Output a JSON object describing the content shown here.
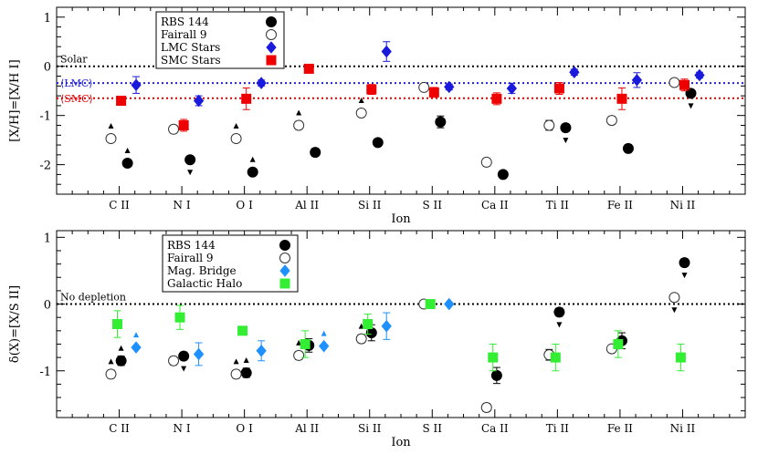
{
  "chart_data": [
    {
      "type": "scatter",
      "categories": [
        "C II",
        "N I",
        "O I",
        "Al II",
        "Si II",
        "S II",
        "Ca II",
        "Ti II",
        "Fe II",
        "Ni II"
      ],
      "xlabel": "Ion",
      "ylabel": "[X/H]=[X/H I]",
      "ylim": [
        -2.6,
        1.2
      ],
      "yticks": [
        -2,
        -1,
        0,
        1
      ],
      "reference_lines": [
        {
          "label": "Solar",
          "y": 0,
          "color": "#000000"
        },
        {
          "label": "⟨LMC⟩",
          "y": -0.34,
          "color": "#2222dd"
        },
        {
          "label": "⟨SMC⟩",
          "y": -0.65,
          "color": "#dd0000"
        }
      ],
      "legend": {
        "position": "top-left",
        "entries": [
          {
            "label": "RBS 144",
            "marker": "filled-circle"
          },
          {
            "label": "Fairall 9",
            "marker": "open-circle"
          },
          {
            "label": "LMC Stars",
            "marker": "blue-diamond"
          },
          {
            "label": "SMC Stars",
            "marker": "red-square"
          }
        ]
      },
      "series": [
        {
          "name": "RBS 144",
          "marker": "filled-circle",
          "color": "#000000",
          "offset": 0.22,
          "points": [
            {
              "c": 0,
              "y": -1.97,
              "err": 0.06,
              "limit": "lower"
            },
            {
              "c": 1,
              "y": -1.9,
              "err": 0.06,
              "limit": "upper"
            },
            {
              "c": 2,
              "y": -2.15,
              "err": 0.06,
              "limit": "lower"
            },
            {
              "c": 3,
              "y": -1.75,
              "err": 0.08,
              "limit": null
            },
            {
              "c": 4,
              "y": -1.55,
              "err": 0.06,
              "limit": null
            },
            {
              "c": 5,
              "y": -1.13,
              "err": 0.12,
              "limit": null
            },
            {
              "c": 6,
              "y": -2.2,
              "err": 0.07,
              "limit": null
            },
            {
              "c": 7,
              "y": -1.25,
              "err": 0.08,
              "limit": "upper"
            },
            {
              "c": 8,
              "y": -1.67,
              "err": 0.08,
              "limit": null
            },
            {
              "c": 9,
              "y": -0.55,
              "err": 0.06,
              "limit": "upper"
            }
          ]
        },
        {
          "name": "Fairall 9",
          "marker": "open-circle",
          "color": "#000000",
          "offset": -0.22,
          "points": [
            {
              "c": 0,
              "y": -1.47,
              "err": 0.06,
              "limit": "lower"
            },
            {
              "c": 1,
              "y": -1.28,
              "err": 0.08,
              "limit": null
            },
            {
              "c": 2,
              "y": -1.47,
              "err": 0.06,
              "limit": "lower"
            },
            {
              "c": 3,
              "y": -1.2,
              "err": 0.08,
              "limit": "lower"
            },
            {
              "c": 4,
              "y": -0.95,
              "err": 0.06,
              "limit": "lower"
            },
            {
              "c": 5,
              "y": -0.43,
              "err": 0.06,
              "limit": null
            },
            {
              "c": 6,
              "y": -1.95,
              "err": 0.08,
              "limit": null
            },
            {
              "c": 7,
              "y": -1.2,
              "err": 0.1,
              "limit": null
            },
            {
              "c": 8,
              "y": -1.1,
              "err": 0.08,
              "limit": null
            },
            {
              "c": 9,
              "y": -0.33,
              "err": 0.05,
              "limit": null
            }
          ]
        },
        {
          "name": "LMC Stars",
          "marker": "blue-diamond",
          "color": "#1a1add",
          "offset": 0.45,
          "points": [
            {
              "c": 0,
              "y": -0.38,
              "err": 0.17
            },
            {
              "c": 1,
              "y": -0.7,
              "err": 0.1
            },
            {
              "c": 2,
              "y": -0.34,
              "err": 0.06
            },
            {
              "c": 4,
              "y": 0.3,
              "err": 0.2
            },
            {
              "c": 5,
              "y": -0.42,
              "err": 0.06
            },
            {
              "c": 6,
              "y": -0.45,
              "err": 0.1
            },
            {
              "c": 7,
              "y": -0.12,
              "err": 0.06
            },
            {
              "c": 8,
              "y": -0.28,
              "err": 0.15
            },
            {
              "c": 9,
              "y": -0.18,
              "err": 0.06
            }
          ]
        },
        {
          "name": "SMC Stars",
          "marker": "red-square",
          "color": "#ee0000",
          "offset": 0.05,
          "points": [
            {
              "c": 0,
              "y": -0.7,
              "err": 0.08
            },
            {
              "c": 1,
              "y": -1.2,
              "err": 0.12
            },
            {
              "c": 2,
              "y": -0.66,
              "err": 0.22
            },
            {
              "c": 3,
              "y": -0.05,
              "err": 0.06
            },
            {
              "c": 4,
              "y": -0.47,
              "err": 0.1
            },
            {
              "c": 5,
              "y": -0.53,
              "err": 0.1
            },
            {
              "c": 6,
              "y": -0.66,
              "err": 0.12
            },
            {
              "c": 7,
              "y": -0.45,
              "err": 0.12
            },
            {
              "c": 8,
              "y": -0.66,
              "err": 0.22
            },
            {
              "c": 9,
              "y": -0.38,
              "err": 0.12
            }
          ]
        }
      ]
    },
    {
      "type": "scatter",
      "categories": [
        "C II",
        "N I",
        "O I",
        "Al II",
        "Si II",
        "S II",
        "Ca II",
        "Ti II",
        "Fe II",
        "Ni II"
      ],
      "xlabel": "Ion",
      "ylabel": "δ(X)=[X/S II]",
      "ylim": [
        -1.7,
        1.1
      ],
      "yticks": [
        -1,
        0,
        1
      ],
      "reference_lines": [
        {
          "label": "No depletion",
          "y": 0,
          "color": "#000000"
        }
      ],
      "legend": {
        "position": "top-left",
        "entries": [
          {
            "label": "RBS 144",
            "marker": "filled-circle"
          },
          {
            "label": "Fairall 9",
            "marker": "open-circle"
          },
          {
            "label": "Mag. Bridge",
            "marker": "lightblue-diamond"
          },
          {
            "label": "Galactic Halo",
            "marker": "green-square"
          }
        ]
      },
      "series": [
        {
          "name": "RBS 144",
          "marker": "filled-circle",
          "color": "#000000",
          "offset": 0.05,
          "points": [
            {
              "c": 0,
              "y": -0.85,
              "err": 0.07,
              "limit": "lower"
            },
            {
              "c": 1,
              "y": -0.78,
              "err": 0.06,
              "limit": "upper"
            },
            {
              "c": 2,
              "y": -1.03,
              "err": 0.07,
              "limit": "lower"
            },
            {
              "c": 3,
              "y": -0.62,
              "err": 0.1,
              "limit": null
            },
            {
              "c": 4,
              "y": -0.43,
              "err": 0.12,
              "limit": null
            },
            {
              "c": 6,
              "y": -1.07,
              "err": 0.12,
              "limit": null
            },
            {
              "c": 7,
              "y": -0.12,
              "err": 0.06,
              "limit": "upper"
            },
            {
              "c": 8,
              "y": -0.55,
              "err": 0.12,
              "limit": null
            },
            {
              "c": 9,
              "y": 0.62,
              "err": 0.06,
              "limit": "upper"
            }
          ]
        },
        {
          "name": "Fairall 9",
          "marker": "open-circle",
          "color": "#000000",
          "offset": -0.22,
          "points": [
            {
              "c": 0,
              "y": -1.05,
              "err": 0.06,
              "limit": "lower"
            },
            {
              "c": 1,
              "y": -0.85,
              "err": 0.06,
              "limit": null
            },
            {
              "c": 2,
              "y": -1.05,
              "err": 0.06,
              "limit": "lower"
            },
            {
              "c": 3,
              "y": -0.77,
              "err": 0.06,
              "limit": "lower"
            },
            {
              "c": 4,
              "y": -0.52,
              "err": 0.06,
              "limit": "lower"
            },
            {
              "c": 5,
              "y": 0.0,
              "err": 0.0,
              "limit": null
            },
            {
              "c": 6,
              "y": -1.55,
              "err": 0.06,
              "limit": null
            },
            {
              "c": 7,
              "y": -0.76,
              "err": 0.08,
              "limit": null
            },
            {
              "c": 8,
              "y": -0.67,
              "err": 0.05,
              "limit": null
            },
            {
              "c": 9,
              "y": 0.1,
              "err": 0.05,
              "limit": "upper"
            }
          ]
        },
        {
          "name": "Mag. Bridge",
          "marker": "lightblue-diamond",
          "color": "#1e90ff",
          "offset": 0.45,
          "points": [
            {
              "c": 0,
              "y": -0.65,
              "err": 0.0,
              "limit": "lower"
            },
            {
              "c": 1,
              "y": -0.75,
              "err": 0.17
            },
            {
              "c": 2,
              "y": -0.7,
              "err": 0.15
            },
            {
              "c": 3,
              "y": -0.63,
              "err": 0.0,
              "limit": "lower"
            },
            {
              "c": 4,
              "y": -0.33,
              "err": 0.2
            },
            {
              "c": 5,
              "y": 0.0,
              "err": 0.0
            }
          ]
        },
        {
          "name": "Galactic Halo",
          "marker": "green-square",
          "color": "#33ee33",
          "offset": -0.05,
          "points": [
            {
              "c": 0,
              "y": -0.3,
              "err": 0.2
            },
            {
              "c": 1,
              "y": -0.2,
              "err": 0.18
            },
            {
              "c": 2,
              "y": -0.4,
              "err": 0.0
            },
            {
              "c": 3,
              "y": -0.6,
              "err": 0.2
            },
            {
              "c": 4,
              "y": -0.3,
              "err": 0.15
            },
            {
              "c": 5,
              "y": 0.0,
              "err": 0.0
            },
            {
              "c": 6,
              "y": -0.8,
              "err": 0.2
            },
            {
              "c": 7,
              "y": -0.8,
              "err": 0.2
            },
            {
              "c": 8,
              "y": -0.6,
              "err": 0.2
            },
            {
              "c": 9,
              "y": -0.8,
              "err": 0.2
            }
          ]
        }
      ]
    }
  ]
}
